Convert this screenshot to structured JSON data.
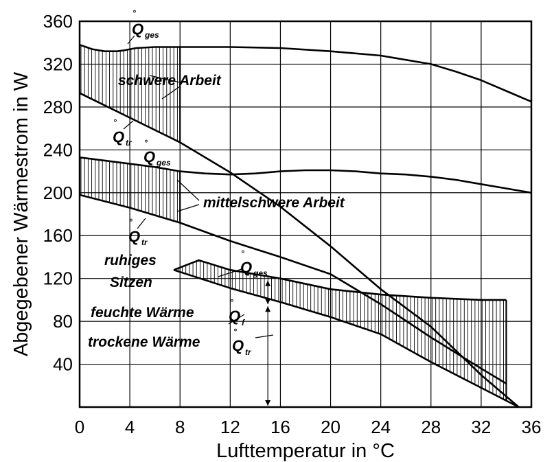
{
  "chart_data": {
    "type": "line",
    "xlabel": "Lufttemperatur in °C",
    "ylabel": "Abgegebener Wärmestrom in W",
    "xlim": [
      0,
      36
    ],
    "ylim": [
      0,
      360
    ],
    "x_ticks": [
      "0",
      "4",
      "8",
      "12",
      "16",
      "20",
      "24",
      "28",
      "32",
      "36"
    ],
    "y_ticks": [
      "40",
      "80",
      "120",
      "160",
      "200",
      "240",
      "280",
      "320",
      "360"
    ],
    "grid": true,
    "series": [
      {
        "name": "Q̊ges (schwere Arbeit)",
        "x": [
          0,
          1,
          2,
          3,
          3.6,
          4.5,
          6,
          8,
          12,
          16,
          20,
          24,
          26,
          28,
          30,
          32,
          34,
          36
        ],
        "y": [
          338,
          334,
          332,
          332,
          333,
          335,
          336,
          336,
          336,
          335,
          332,
          328,
          324,
          320,
          313,
          305,
          295,
          285
        ]
      },
      {
        "name": "Q̊tr (schwere Arbeit)",
        "x": [
          0,
          4,
          8,
          12,
          16,
          20,
          24,
          28,
          32,
          35
        ],
        "y": [
          293,
          270,
          247,
          219,
          187,
          150,
          110,
          75,
          30,
          0
        ]
      },
      {
        "name": "Q̊ges (mittelschwere Arbeit)",
        "x": [
          0,
          2,
          4,
          6,
          8,
          10,
          12,
          14,
          16,
          18,
          20,
          22,
          24,
          26,
          28,
          30,
          32,
          34,
          36
        ],
        "y": [
          233,
          230,
          227,
          224,
          220,
          218,
          217,
          218,
          220,
          221,
          221,
          220,
          218,
          217,
          215,
          212,
          208,
          204,
          200
        ]
      },
      {
        "name": "Q̊tr (mittelschwere Arbeit)",
        "x": [
          0,
          4,
          8,
          12,
          16,
          20,
          24,
          28,
          32,
          34
        ],
        "y": [
          198,
          186,
          172,
          155,
          140,
          124,
          96,
          65,
          36,
          22
        ]
      },
      {
        "name": "Q̊ges (ruhiges Sitzen)",
        "x": [
          7.5,
          9.5,
          12,
          16,
          20,
          24,
          28,
          32,
          34
        ],
        "y": [
          128,
          137,
          128,
          120,
          110,
          105,
          102,
          100,
          100
        ]
      },
      {
        "name": "Q̊tr (ruhiges Sitzen)",
        "x": [
          7.5,
          12,
          16,
          20,
          24,
          28,
          32,
          35
        ],
        "y": [
          128,
          111,
          98,
          84,
          68,
          42,
          18,
          0
        ]
      }
    ],
    "shaded_regions": [
      {
        "label": "schwere Arbeit",
        "x_range": [
          0,
          8
        ]
      },
      {
        "label": "mittelschwere Arbeit",
        "x_range": [
          0,
          8
        ]
      },
      {
        "label": "ruhiges Sitzen",
        "x_range": [
          7.5,
          34
        ]
      }
    ],
    "annotations": {
      "schwere": "schwere Arbeit",
      "mittel": "mittelschwere Arbeit",
      "ruhig1": "ruhiges",
      "ruhig2": "Sitzen",
      "feucht": "feuchte Wärme",
      "trocken": "trockene Wärme",
      "q_main": "Q",
      "q_ring": "°",
      "sub_ges": "ges",
      "sub_tr": "tr",
      "sub_f": "f"
    }
  }
}
